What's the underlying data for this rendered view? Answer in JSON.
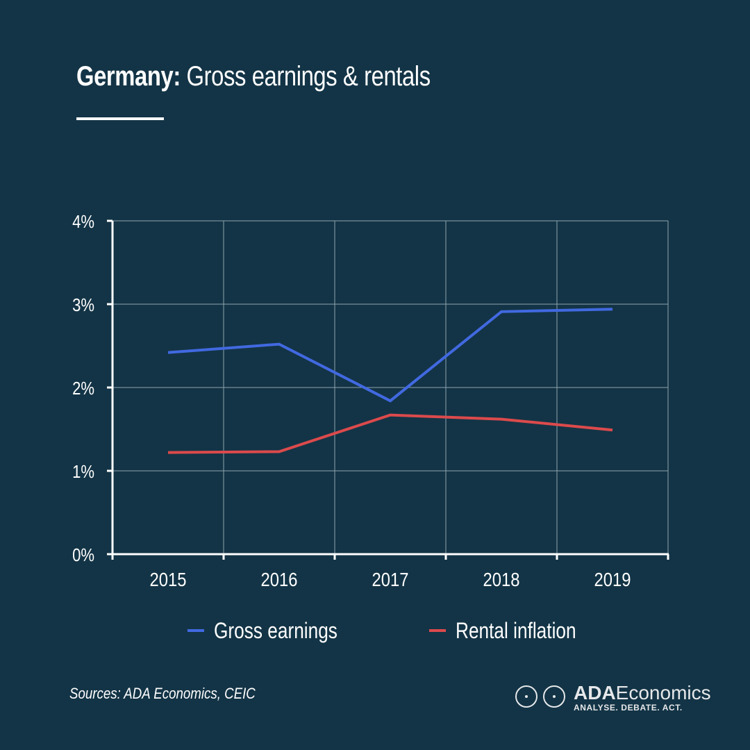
{
  "header": {
    "title_bold": "Germany:",
    "title_rest": " Gross earnings & rentals"
  },
  "chart_data": {
    "type": "line",
    "title": "Germany: Gross earnings & rentals",
    "xlabel": "",
    "ylabel": "",
    "categories": [
      "2015",
      "2016",
      "2017",
      "2018",
      "2019"
    ],
    "ylim": [
      0,
      4
    ],
    "yticks": [
      0,
      1,
      2,
      3,
      4
    ],
    "ytick_labels": [
      "0%",
      "1%",
      "2%",
      "3%",
      "4%"
    ],
    "grid": true,
    "legend_position": "bottom",
    "series": [
      {
        "name": "Gross earnings",
        "color": "#4169e1",
        "values": [
          2.42,
          2.52,
          1.84,
          2.91,
          2.94
        ]
      },
      {
        "name": "Rental inflation",
        "color": "#dc4a4c",
        "values": [
          1.22,
          1.23,
          1.67,
          1.62,
          1.49
        ]
      }
    ]
  },
  "legend": {
    "items": [
      {
        "label": "Gross earnings",
        "color": "#4169e1"
      },
      {
        "label": "Rental inflation",
        "color": "#dc4a4c"
      }
    ]
  },
  "footer": {
    "sources": "Sources: ADA Economics, CEIC",
    "brand_name_bold": "ADA",
    "brand_name_rest": "Economics",
    "brand_tagline": "ANALYSE. DEBATE. ACT."
  },
  "colors": {
    "background": "#133446",
    "axis": "#ffffff",
    "grid": "#8fa3ad"
  }
}
